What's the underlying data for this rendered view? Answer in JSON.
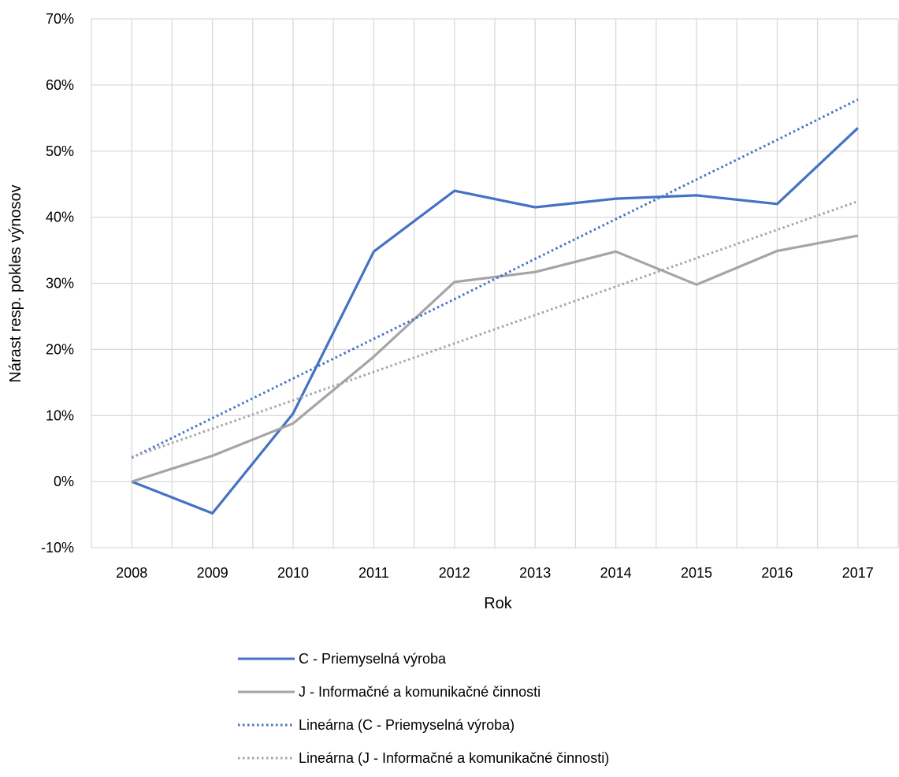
{
  "chart_data": {
    "type": "line",
    "title": "",
    "xlabel": "Rok",
    "ylabel": "Nárast resp. pokles výnosov",
    "categories": [
      "2008",
      "2009",
      "2010",
      "2011",
      "2012",
      "2013",
      "2014",
      "2015",
      "2016",
      "2017"
    ],
    "ylim": [
      -10,
      70
    ],
    "ytick_values": [
      -10,
      0,
      10,
      20,
      30,
      40,
      50,
      60,
      70
    ],
    "ytick_labels": [
      "-10%",
      "0%",
      "10%",
      "20%",
      "30%",
      "40%",
      "50%",
      "60%",
      "70%"
    ],
    "grid": true,
    "legend_position": "bottom",
    "series": [
      {
        "name": "C - Priemyselná výroba",
        "values": [
          0,
          -4.8,
          10.3,
          34.8,
          44.0,
          41.5,
          42.8,
          43.3,
          42.0,
          53.5
        ],
        "color": "#4472C4",
        "style": "solid"
      },
      {
        "name": "J - Informačné a komunikačné činnosti",
        "values": [
          0,
          3.9,
          8.8,
          18.9,
          30.2,
          31.7,
          34.8,
          29.8,
          34.9,
          37.2
        ],
        "color": "#A5A5A5",
        "style": "solid"
      },
      {
        "name": "Lineárna (C - Priemyselná výroba)",
        "values": [
          3.6,
          9.6,
          15.6,
          21.6,
          27.6,
          33.7,
          39.7,
          45.7,
          51.7,
          57.8
        ],
        "color": "#4472C4",
        "style": "dotted"
      },
      {
        "name": "Lineárna (J - Informačné a komunikačné činnosti)",
        "values": [
          3.7,
          8.0,
          12.3,
          16.6,
          20.9,
          25.2,
          29.5,
          33.8,
          38.1,
          42.4
        ],
        "color": "#A5A5A5",
        "style": "dotted"
      }
    ]
  }
}
